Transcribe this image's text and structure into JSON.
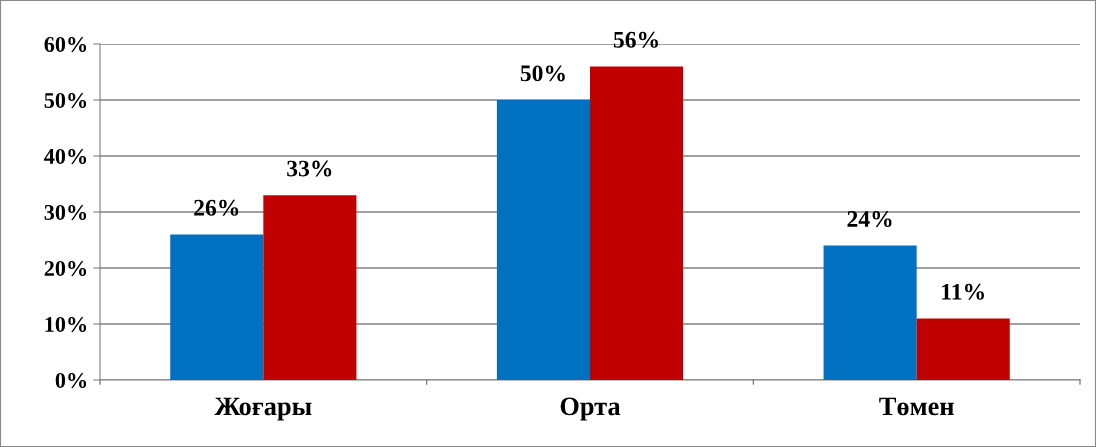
{
  "chart_data": {
    "type": "bar",
    "categories": [
      "Жоғары",
      "Орта",
      "Төмен"
    ],
    "series": [
      {
        "color": "#0070c0",
        "values": [
          26,
          50,
          24
        ],
        "value_labels": [
          "26%",
          "50%",
          "24%"
        ]
      },
      {
        "color": "#c00000",
        "values": [
          33,
          56,
          11
        ],
        "value_labels": [
          "33%",
          "56%",
          "11%"
        ]
      }
    ],
    "ylim": [
      0,
      60
    ],
    "yticks": [
      {
        "value": 0,
        "label": "0%"
      },
      {
        "value": 10,
        "label": "10%"
      },
      {
        "value": 20,
        "label": "20%"
      },
      {
        "value": 30,
        "label": "30%"
      },
      {
        "value": 40,
        "label": "40%"
      },
      {
        "value": 50,
        "label": "50%"
      },
      {
        "value": 60,
        "label": "60%"
      }
    ],
    "grid": "y"
  }
}
